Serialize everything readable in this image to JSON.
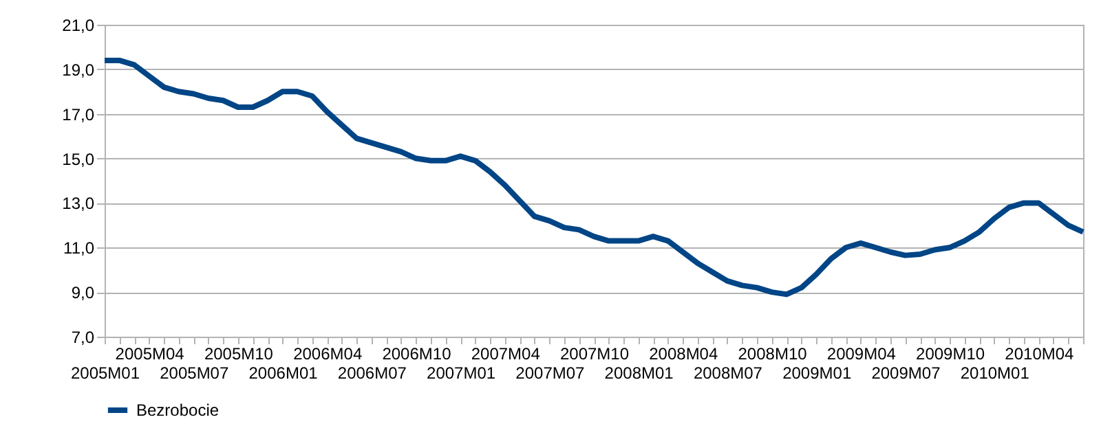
{
  "chart_data": {
    "type": "line",
    "categories": [
      "2005M01",
      null,
      null,
      "2005M04",
      null,
      null,
      "2005M07",
      null,
      null,
      "2005M10",
      null,
      null,
      "2006M01",
      null,
      null,
      "2006M04",
      null,
      null,
      "2006M07",
      null,
      null,
      "2006M10",
      null,
      null,
      "2007M01",
      null,
      null,
      "2007M04",
      null,
      null,
      "2007M07",
      null,
      null,
      "2007M10",
      null,
      null,
      "2008M01",
      null,
      null,
      "2008M04",
      null,
      null,
      "2008M07",
      null,
      null,
      "2008M10",
      null,
      null,
      "2009M01",
      null,
      null,
      "2009M04",
      null,
      null,
      "2009M07",
      null,
      null,
      "2009M10",
      null,
      null,
      "2010M01",
      null,
      null,
      "2010M04",
      null,
      null,
      null
    ],
    "series": [
      {
        "name": "Bezrobocie",
        "color": "#004586",
        "values": [
          19.4,
          19.4,
          19.2,
          18.7,
          18.2,
          18.0,
          17.9,
          17.7,
          17.6,
          17.3,
          17.3,
          17.6,
          18.0,
          18.0,
          17.8,
          17.1,
          16.5,
          15.9,
          15.7,
          15.5,
          15.3,
          15.0,
          14.9,
          14.9,
          15.1,
          14.9,
          14.4,
          13.8,
          13.1,
          12.4,
          12.2,
          11.9,
          11.8,
          11.5,
          11.3,
          11.3,
          11.3,
          11.5,
          11.3,
          10.8,
          10.3,
          9.9,
          9.5,
          9.3,
          9.2,
          9.0,
          8.9,
          9.2,
          9.8,
          10.5,
          11.0,
          11.2,
          11.0,
          10.8,
          10.65,
          10.7,
          10.9,
          11.0,
          11.3,
          11.7,
          12.3,
          12.8,
          13.0,
          13.0,
          12.5,
          12.0,
          11.7
        ]
      }
    ],
    "ylim": [
      7,
      21
    ],
    "yticks": [
      {
        "value": 7,
        "label": "7,0"
      },
      {
        "value": 9,
        "label": "9,0"
      },
      {
        "value": 11,
        "label": "11,0"
      },
      {
        "value": 13,
        "label": "13,0"
      },
      {
        "value": 15,
        "label": "15,0"
      },
      {
        "value": 17,
        "label": "17,0"
      },
      {
        "value": 19,
        "label": "19,0"
      },
      {
        "value": 21,
        "label": "21,0"
      }
    ],
    "grid": "y",
    "legend": "bottom",
    "marker": "none",
    "line_style": "solid"
  }
}
